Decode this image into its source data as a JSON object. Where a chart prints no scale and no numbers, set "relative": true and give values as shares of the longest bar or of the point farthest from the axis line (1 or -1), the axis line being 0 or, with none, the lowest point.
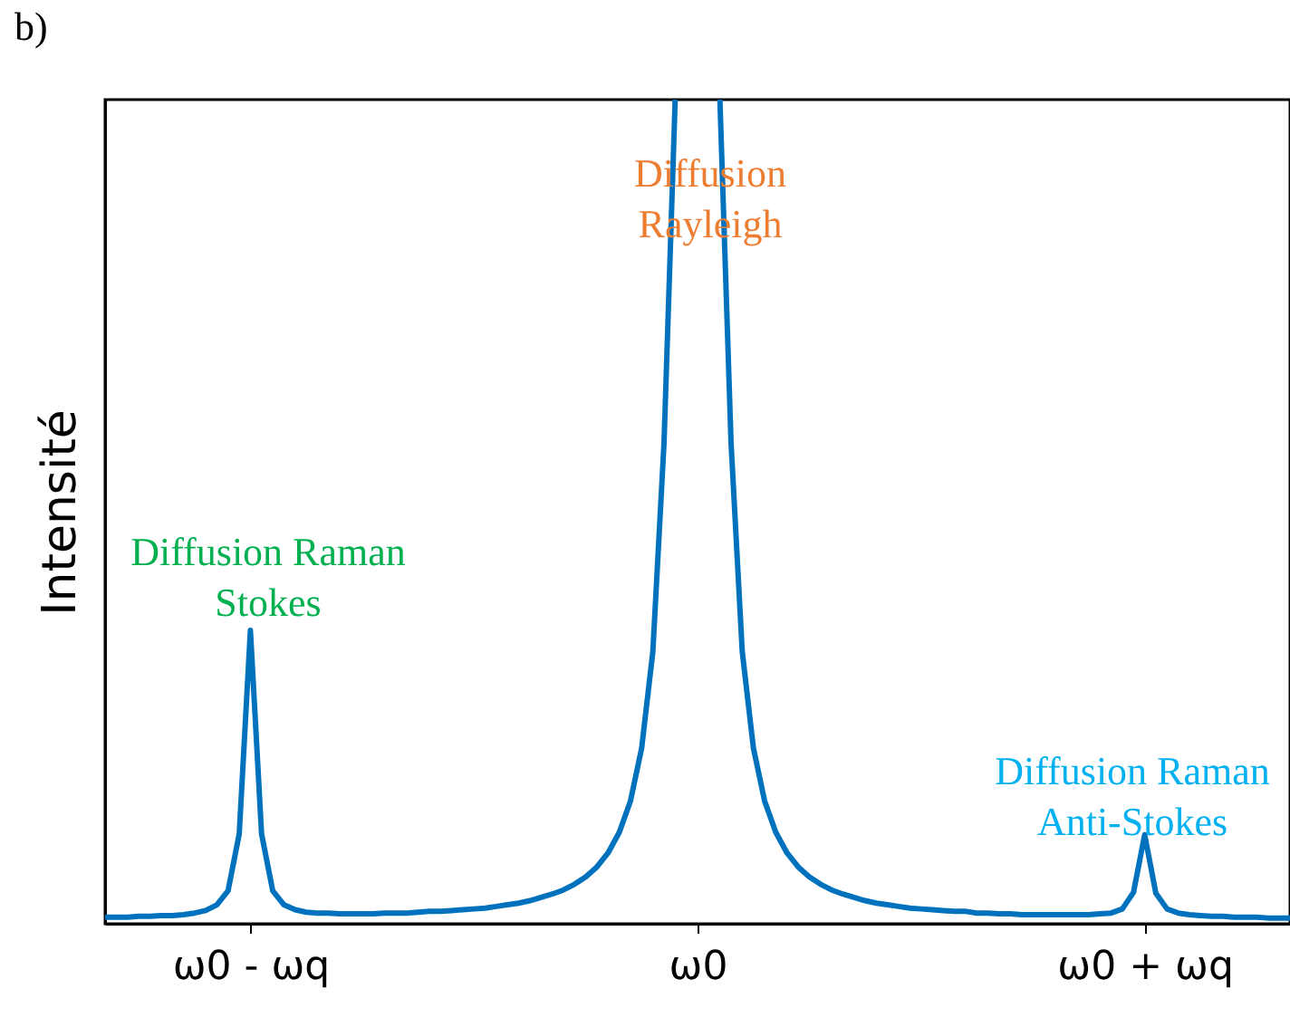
{
  "chart_data": {
    "type": "line",
    "relative": true,
    "ylabel": "Intensité",
    "categories": [
      null,
      null,
      null,
      null,
      null,
      null,
      null,
      null,
      null,
      null,
      null,
      null,
      null,
      "ω0 - ωq",
      null,
      null,
      null,
      null,
      null,
      null,
      null,
      null,
      null,
      null,
      null,
      null,
      null,
      null,
      null,
      null,
      null,
      null,
      null,
      null,
      null,
      null,
      null,
      null,
      null,
      null,
      null,
      null,
      null,
      null,
      null,
      null,
      null,
      null,
      null,
      null,
      null,
      null,
      null,
      "ω0",
      null,
      null,
      null,
      null,
      null,
      null,
      null,
      null,
      null,
      null,
      null,
      null,
      null,
      null,
      null,
      null,
      null,
      null,
      null,
      null,
      null,
      null,
      null,
      null,
      null,
      null,
      null,
      null,
      null,
      null,
      null,
      null,
      null,
      null,
      null,
      null,
      null,
      null,
      null,
      "ω0 + ωq",
      null,
      null,
      null,
      null,
      null,
      null,
      null,
      null,
      null,
      null,
      null,
      null,
      null
    ],
    "series": [
      {
        "color": "#0072bd",
        "values": [
          0.008,
          0.008,
          0.008,
          0.009,
          0.009,
          0.01,
          0.01,
          0.011,
          0.013,
          0.016,
          0.023,
          0.04,
          0.109,
          0.356,
          0.109,
          0.04,
          0.023,
          0.017,
          0.014,
          0.013,
          0.013,
          0.012,
          0.012,
          0.012,
          0.012,
          0.013,
          0.013,
          0.013,
          0.014,
          0.015,
          0.015,
          0.016,
          0.017,
          0.018,
          0.019,
          0.021,
          0.023,
          0.025,
          0.028,
          0.032,
          0.036,
          0.041,
          0.048,
          0.057,
          0.069,
          0.086,
          0.111,
          0.149,
          0.213,
          0.33,
          0.583,
          1.0,
          null,
          null,
          null,
          1.0,
          0.583,
          0.33,
          0.213,
          0.149,
          0.111,
          0.086,
          0.069,
          0.057,
          0.048,
          0.041,
          0.036,
          0.032,
          0.028,
          0.025,
          0.023,
          0.021,
          0.019,
          0.018,
          0.017,
          0.016,
          0.015,
          0.015,
          0.013,
          0.013,
          0.012,
          0.012,
          0.011,
          0.011,
          0.011,
          0.011,
          0.011,
          0.011,
          0.011,
          0.012,
          0.013,
          0.018,
          0.038,
          0.108,
          0.037,
          0.018,
          0.013,
          0.011,
          0.01,
          0.009,
          0.009,
          0.008,
          0.008,
          0.008,
          0.007,
          0.007,
          0.007
        ]
      }
    ],
    "grid": false,
    "marker": "none",
    "line_style": "solid",
    "annotations": [
      "b)",
      "Diffusion Raman\nStokes",
      "Diffusion\nRayleigh",
      "Diffusion Raman\nAnti-Stokes"
    ]
  }
}
